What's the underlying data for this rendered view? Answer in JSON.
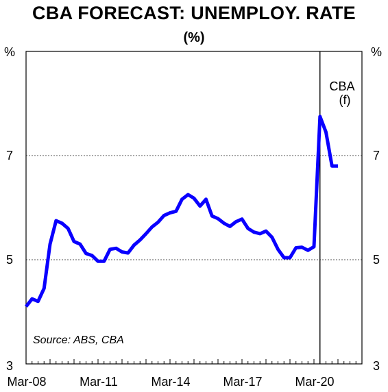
{
  "chart_data": {
    "type": "line",
    "title": "CBA FORECAST: UNEMPLOY. RATE",
    "subtitle": "(%)",
    "left_unit": "%",
    "right_unit": "%",
    "xlabel": "",
    "ylabel": "",
    "ylim": [
      3,
      9
    ],
    "yticks": [
      3,
      5,
      7
    ],
    "xlim": [
      "2008-03",
      "2022-03"
    ],
    "xtick_labels": [
      "Mar-08",
      "Mar-11",
      "Mar-14",
      "Mar-17",
      "Mar-20"
    ],
    "xtick_dates": [
      "2008-03",
      "2011-03",
      "2014-03",
      "2017-03",
      "2020-03"
    ],
    "grid": "dashed horizontal at 5 and 7",
    "forecast_divider": "2020-06",
    "forecast_label": [
      "CBA",
      "(f)"
    ],
    "source_note": "Source: ABS, CBA",
    "line_color": "#0a00ff",
    "series": [
      {
        "color": "#0a00ff",
        "x": [
          "2008-03",
          "2008-06",
          "2008-09",
          "2008-12",
          "2009-03",
          "2009-06",
          "2009-09",
          "2009-12",
          "2010-03",
          "2010-06",
          "2010-09",
          "2010-12",
          "2011-03",
          "2011-06",
          "2011-09",
          "2011-12",
          "2012-03",
          "2012-06",
          "2012-09",
          "2012-12",
          "2013-03",
          "2013-06",
          "2013-09",
          "2013-12",
          "2014-03",
          "2014-06",
          "2014-09",
          "2014-12",
          "2015-03",
          "2015-06",
          "2015-09",
          "2015-12",
          "2016-03",
          "2016-06",
          "2016-09",
          "2016-12",
          "2017-03",
          "2017-06",
          "2017-09",
          "2017-12",
          "2018-03",
          "2018-06",
          "2018-09",
          "2018-12",
          "2019-03",
          "2019-06",
          "2019-09",
          "2019-12",
          "2020-03",
          "2020-06",
          "2020-09",
          "2020-12",
          "2021-03"
        ],
        "y": [
          4.1,
          4.25,
          4.2,
          4.45,
          5.3,
          5.75,
          5.7,
          5.6,
          5.35,
          5.3,
          5.12,
          5.08,
          4.97,
          4.97,
          5.2,
          5.22,
          5.15,
          5.13,
          5.28,
          5.38,
          5.5,
          5.63,
          5.72,
          5.85,
          5.9,
          5.93,
          6.16,
          6.25,
          6.18,
          6.03,
          6.16,
          5.84,
          5.79,
          5.7,
          5.64,
          5.73,
          5.78,
          5.6,
          5.53,
          5.5,
          5.55,
          5.43,
          5.2,
          5.04,
          5.04,
          5.23,
          5.24,
          5.18,
          5.25,
          7.75,
          7.45,
          6.8,
          6.8
        ]
      }
    ]
  }
}
